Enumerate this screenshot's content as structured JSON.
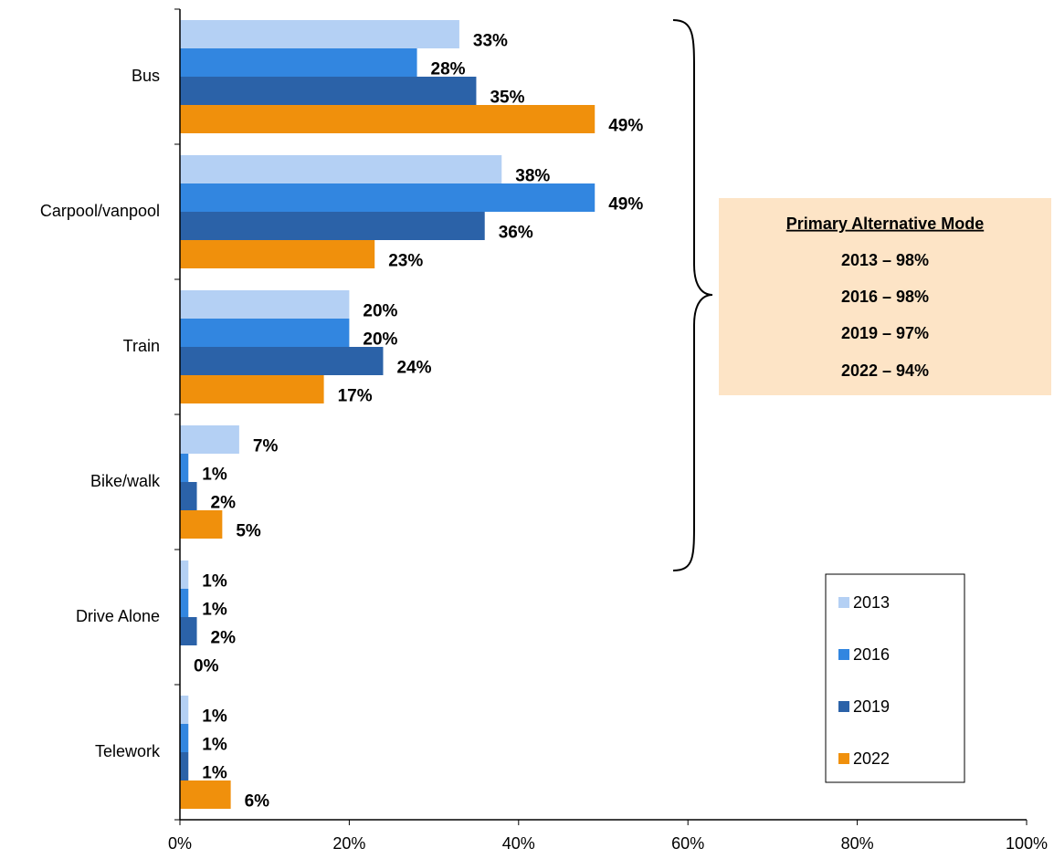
{
  "chart_data": {
    "type": "barh",
    "categories": [
      "Bus",
      "Carpool/vanpool",
      "Train",
      "Bike/walk",
      "Drive Alone",
      "Telework"
    ],
    "series": [
      {
        "name": "2013",
        "color": "#b4d0f4",
        "values": [
          33,
          38,
          20,
          7,
          1,
          1
        ],
        "value_labels": [
          "33%",
          "38%",
          "20%",
          "7%",
          "1%",
          "1%"
        ]
      },
      {
        "name": "2016",
        "color": "#3286e0",
        "values": [
          28,
          49,
          20,
          1,
          1,
          1
        ],
        "value_labels": [
          "28%",
          "49%",
          "20%",
          "1%",
          "1%",
          "1%"
        ]
      },
      {
        "name": "2019",
        "color": "#2b62a8",
        "values": [
          35,
          36,
          24,
          2,
          2,
          1
        ],
        "value_labels": [
          "35%",
          "36%",
          "24%",
          "2%",
          "2%",
          "1%"
        ]
      },
      {
        "name": "2022",
        "color": "#f0900c",
        "values": [
          49,
          23,
          17,
          5,
          0,
          6
        ],
        "value_labels": [
          "49%",
          "23%",
          "17%",
          "5%",
          "0%",
          "6%"
        ]
      }
    ],
    "xlim": [
      0,
      100
    ],
    "xticks": [
      {
        "value": 0,
        "label": "0%"
      },
      {
        "value": 20,
        "label": "20%"
      },
      {
        "value": 40,
        "label": "40%"
      },
      {
        "value": 60,
        "label": "60%"
      },
      {
        "value": 80,
        "label": "80%"
      },
      {
        "value": 100,
        "label": "100%"
      }
    ],
    "legend": "lower right",
    "annotation": {
      "title": "Primary Alternative Mode",
      "lines": [
        "2013 – 98%",
        "2016 – 98%",
        "2019 – 97%",
        "2022 – 94%"
      ]
    }
  }
}
